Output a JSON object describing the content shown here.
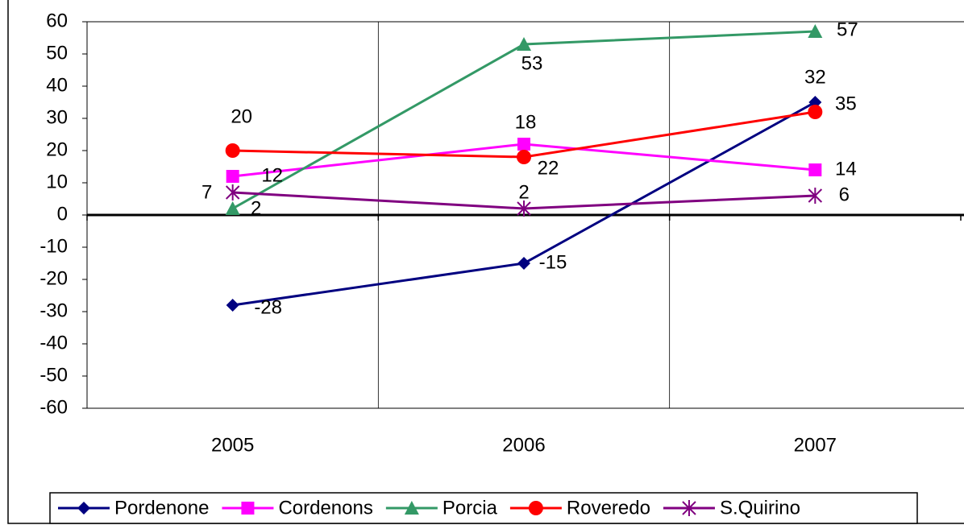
{
  "chart_data": {
    "type": "line",
    "categories": [
      "2005",
      "2006",
      "2007"
    ],
    "series": [
      {
        "name": "Pordenone",
        "color": "#000080",
        "marker": "diamond",
        "values": [
          -28,
          -15,
          35
        ]
      },
      {
        "name": "Cordenons",
        "color": "#ff00ff",
        "marker": "square",
        "values": [
          12,
          22,
          14
        ]
      },
      {
        "name": "Porcia",
        "color": "#339966",
        "marker": "triangle",
        "values": [
          2,
          53,
          57
        ]
      },
      {
        "name": "Roveredo",
        "color": "#ff0000",
        "marker": "circle",
        "values": [
          20,
          18,
          32
        ]
      },
      {
        "name": "S.Quirino",
        "color": "#800080",
        "marker": "star",
        "values": [
          7,
          2,
          6
        ]
      }
    ],
    "ylim": [
      -60,
      60
    ],
    "yticks": [
      -60,
      -50,
      -40,
      -30,
      -20,
      -10,
      0,
      10,
      20,
      30,
      40,
      50,
      60
    ],
    "legend": "bottom"
  }
}
